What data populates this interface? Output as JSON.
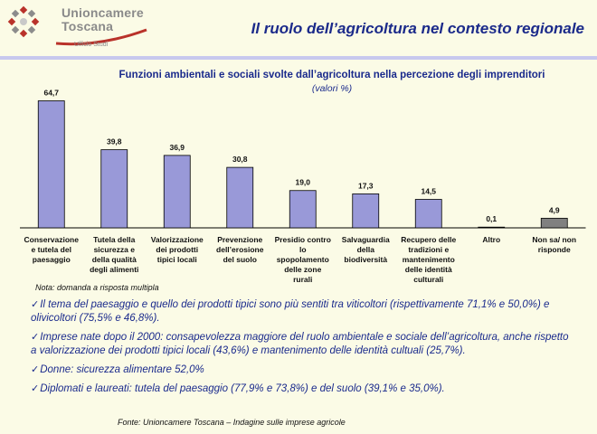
{
  "header": {
    "brand_line1": "Unioncamere",
    "brand_line2": "Toscana",
    "brand_sub": "Ufficio Studi",
    "slide_title": "Il ruolo dell’agricoltura nel contesto regionale"
  },
  "chart_data": {
    "type": "bar",
    "title": "Funzioni ambientali e sociali svolte dall’agricoltura nella percezione degli imprenditori",
    "subtitle": "(valori %)",
    "categories": [
      "Conservazione e tutela del paesaggio",
      "Tutela della sicurezza e della qualità degli alimenti",
      "Valorizzazione dei prodotti tipici locali",
      "Prevenzione dell’erosione del suolo",
      "Presidio contro lo spopolamento delle zone rurali",
      "Salvaguardia della biodiversità",
      "Recupero delle tradizioni e mantenimento delle identità culturali",
      "Altro",
      "Non sa/ non risponde"
    ],
    "values": [
      64.7,
      39.8,
      36.9,
      30.8,
      19.0,
      17.3,
      14.5,
      0.1,
      4.9
    ],
    "value_labels": [
      "64,7",
      "39,8",
      "36,9",
      "30,8",
      "19,0",
      "17,3",
      "14,5",
      "0,1",
      "4,9"
    ],
    "colors": [
      "#9999d8",
      "#9999d8",
      "#9999d8",
      "#9999d8",
      "#9999d8",
      "#9999d8",
      "#9999d8",
      "#9999d8",
      "#808080"
    ],
    "ylim": [
      0,
      70
    ],
    "grid": false,
    "legend": "none"
  },
  "category_lines": [
    [
      "Conservazione",
      "e tutela del",
      "paesaggio"
    ],
    [
      "Tutela della",
      "sicurezza e",
      "della qualità",
      "degli alimenti"
    ],
    [
      "Valorizzazione",
      "dei prodotti",
      "tipici locali"
    ],
    [
      "Prevenzione",
      "dell’erosione",
      "del suolo"
    ],
    [
      "Presidio contro",
      "lo",
      "spopolamento",
      "delle zone",
      "rurali"
    ],
    [
      "Salvaguardia",
      "della",
      "biodiversità"
    ],
    [
      "Recupero delle",
      "tradizioni e",
      "mantenimento",
      "delle identità",
      "culturali"
    ],
    [
      "Altro"
    ],
    [
      "Non sa/ non",
      "risponde"
    ]
  ],
  "note": "Nota: domanda a risposta multipla",
  "bullets": [
    "Il tema del paesaggio e quello dei prodotti tipici sono più sentiti tra viticoltori (rispettivamente 71,1% e 50,0%) e olivicoltori (75,5% e 46,8%).",
    "Imprese nate dopo il 2000: consapevolezza maggiore del ruolo ambientale e sociale dell’agricoltura, anche rispetto a valorizzazione dei prodotti tipici locali (43,6%) e mantenimento delle identità cultuali (25,7%).",
    "Donne: sicurezza alimentare 52,0%",
    "Diplomati e laureati: tutela del paesaggio (77,9% e 73,8%) e del suolo (39,1% e 35,0%)."
  ],
  "check_glyph": "✓",
  "source": "Fonte: Unioncamere Toscana – Indagine sulle imprese agricole"
}
